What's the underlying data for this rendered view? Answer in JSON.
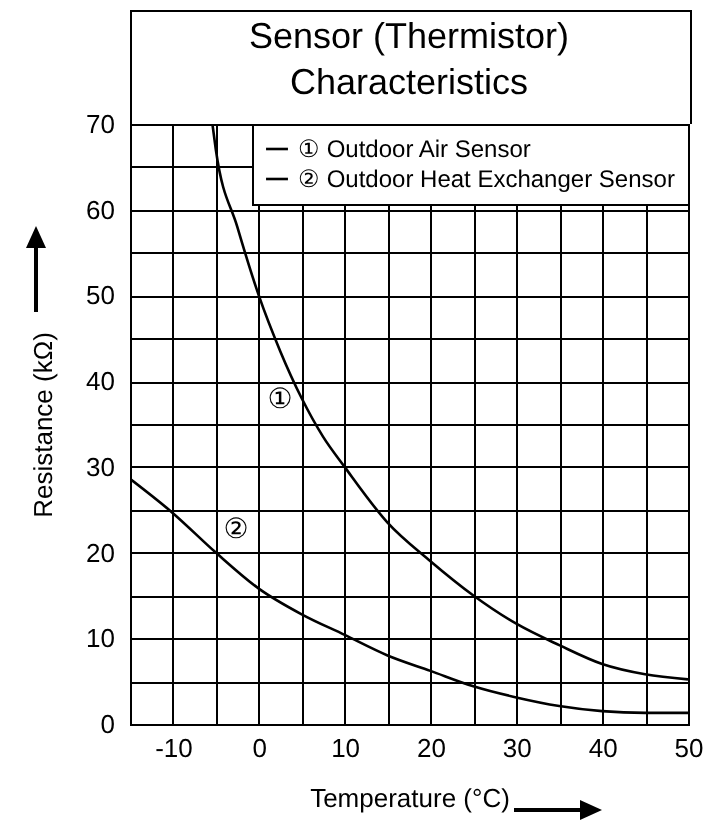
{
  "chart_data": {
    "type": "line",
    "title": "Sensor (Thermistor)\nCharacteristics",
    "xlabel": "Temperature (°C)",
    "ylabel": "Resistance (kΩ)",
    "xlim": [
      -15,
      50
    ],
    "ylim": [
      0,
      70
    ],
    "xticks": [
      {
        "value": -15,
        "label": null
      },
      -10,
      {
        "value": -5,
        "label": null
      },
      0,
      {
        "value": 5,
        "label": null
      },
      10,
      {
        "value": 15,
        "label": null
      },
      20,
      {
        "value": 25,
        "label": null
      },
      30,
      {
        "value": 35,
        "label": null
      },
      40,
      {
        "value": 45,
        "label": null
      },
      50
    ],
    "yticks": [
      0,
      {
        "value": 5,
        "label": null
      },
      10,
      {
        "value": 15,
        "label": null
      },
      20,
      {
        "value": 25,
        "label": null
      },
      30,
      {
        "value": 35,
        "label": null
      },
      40,
      {
        "value": 45,
        "label": null
      },
      50,
      {
        "value": 55,
        "label": null
      },
      60,
      {
        "value": 65,
        "label": null
      },
      70
    ],
    "grid": true,
    "legend": "top right",
    "line_style": "solid",
    "series": [
      {
        "name": "① Outdoor Air Sensor",
        "color": "#000000",
        "x": [
          -5.4,
          -5,
          -2.5,
          0,
          2.5,
          5,
          7.5,
          10,
          15,
          20,
          25,
          30,
          35,
          40,
          45,
          50
        ],
        "values": [
          70,
          67,
          58,
          50,
          43.5,
          38,
          33.5,
          30,
          23.5,
          19,
          15,
          11.7,
          9.2,
          7,
          5.8,
          5.2
        ]
      },
      {
        "name": "② Outdoor Heat Exchanger Sensor",
        "color": "#000000",
        "x": [
          -15,
          -10,
          -5,
          0,
          5,
          10,
          15,
          20,
          25,
          30,
          35,
          40,
          45,
          50
        ],
        "values": [
          28.6,
          24.6,
          20,
          15.8,
          12.8,
          10.4,
          8,
          6.2,
          4.4,
          3.1,
          2.1,
          1.5,
          1.3,
          1.3
        ]
      }
    ],
    "annotations": [
      "①",
      "②"
    ]
  }
}
